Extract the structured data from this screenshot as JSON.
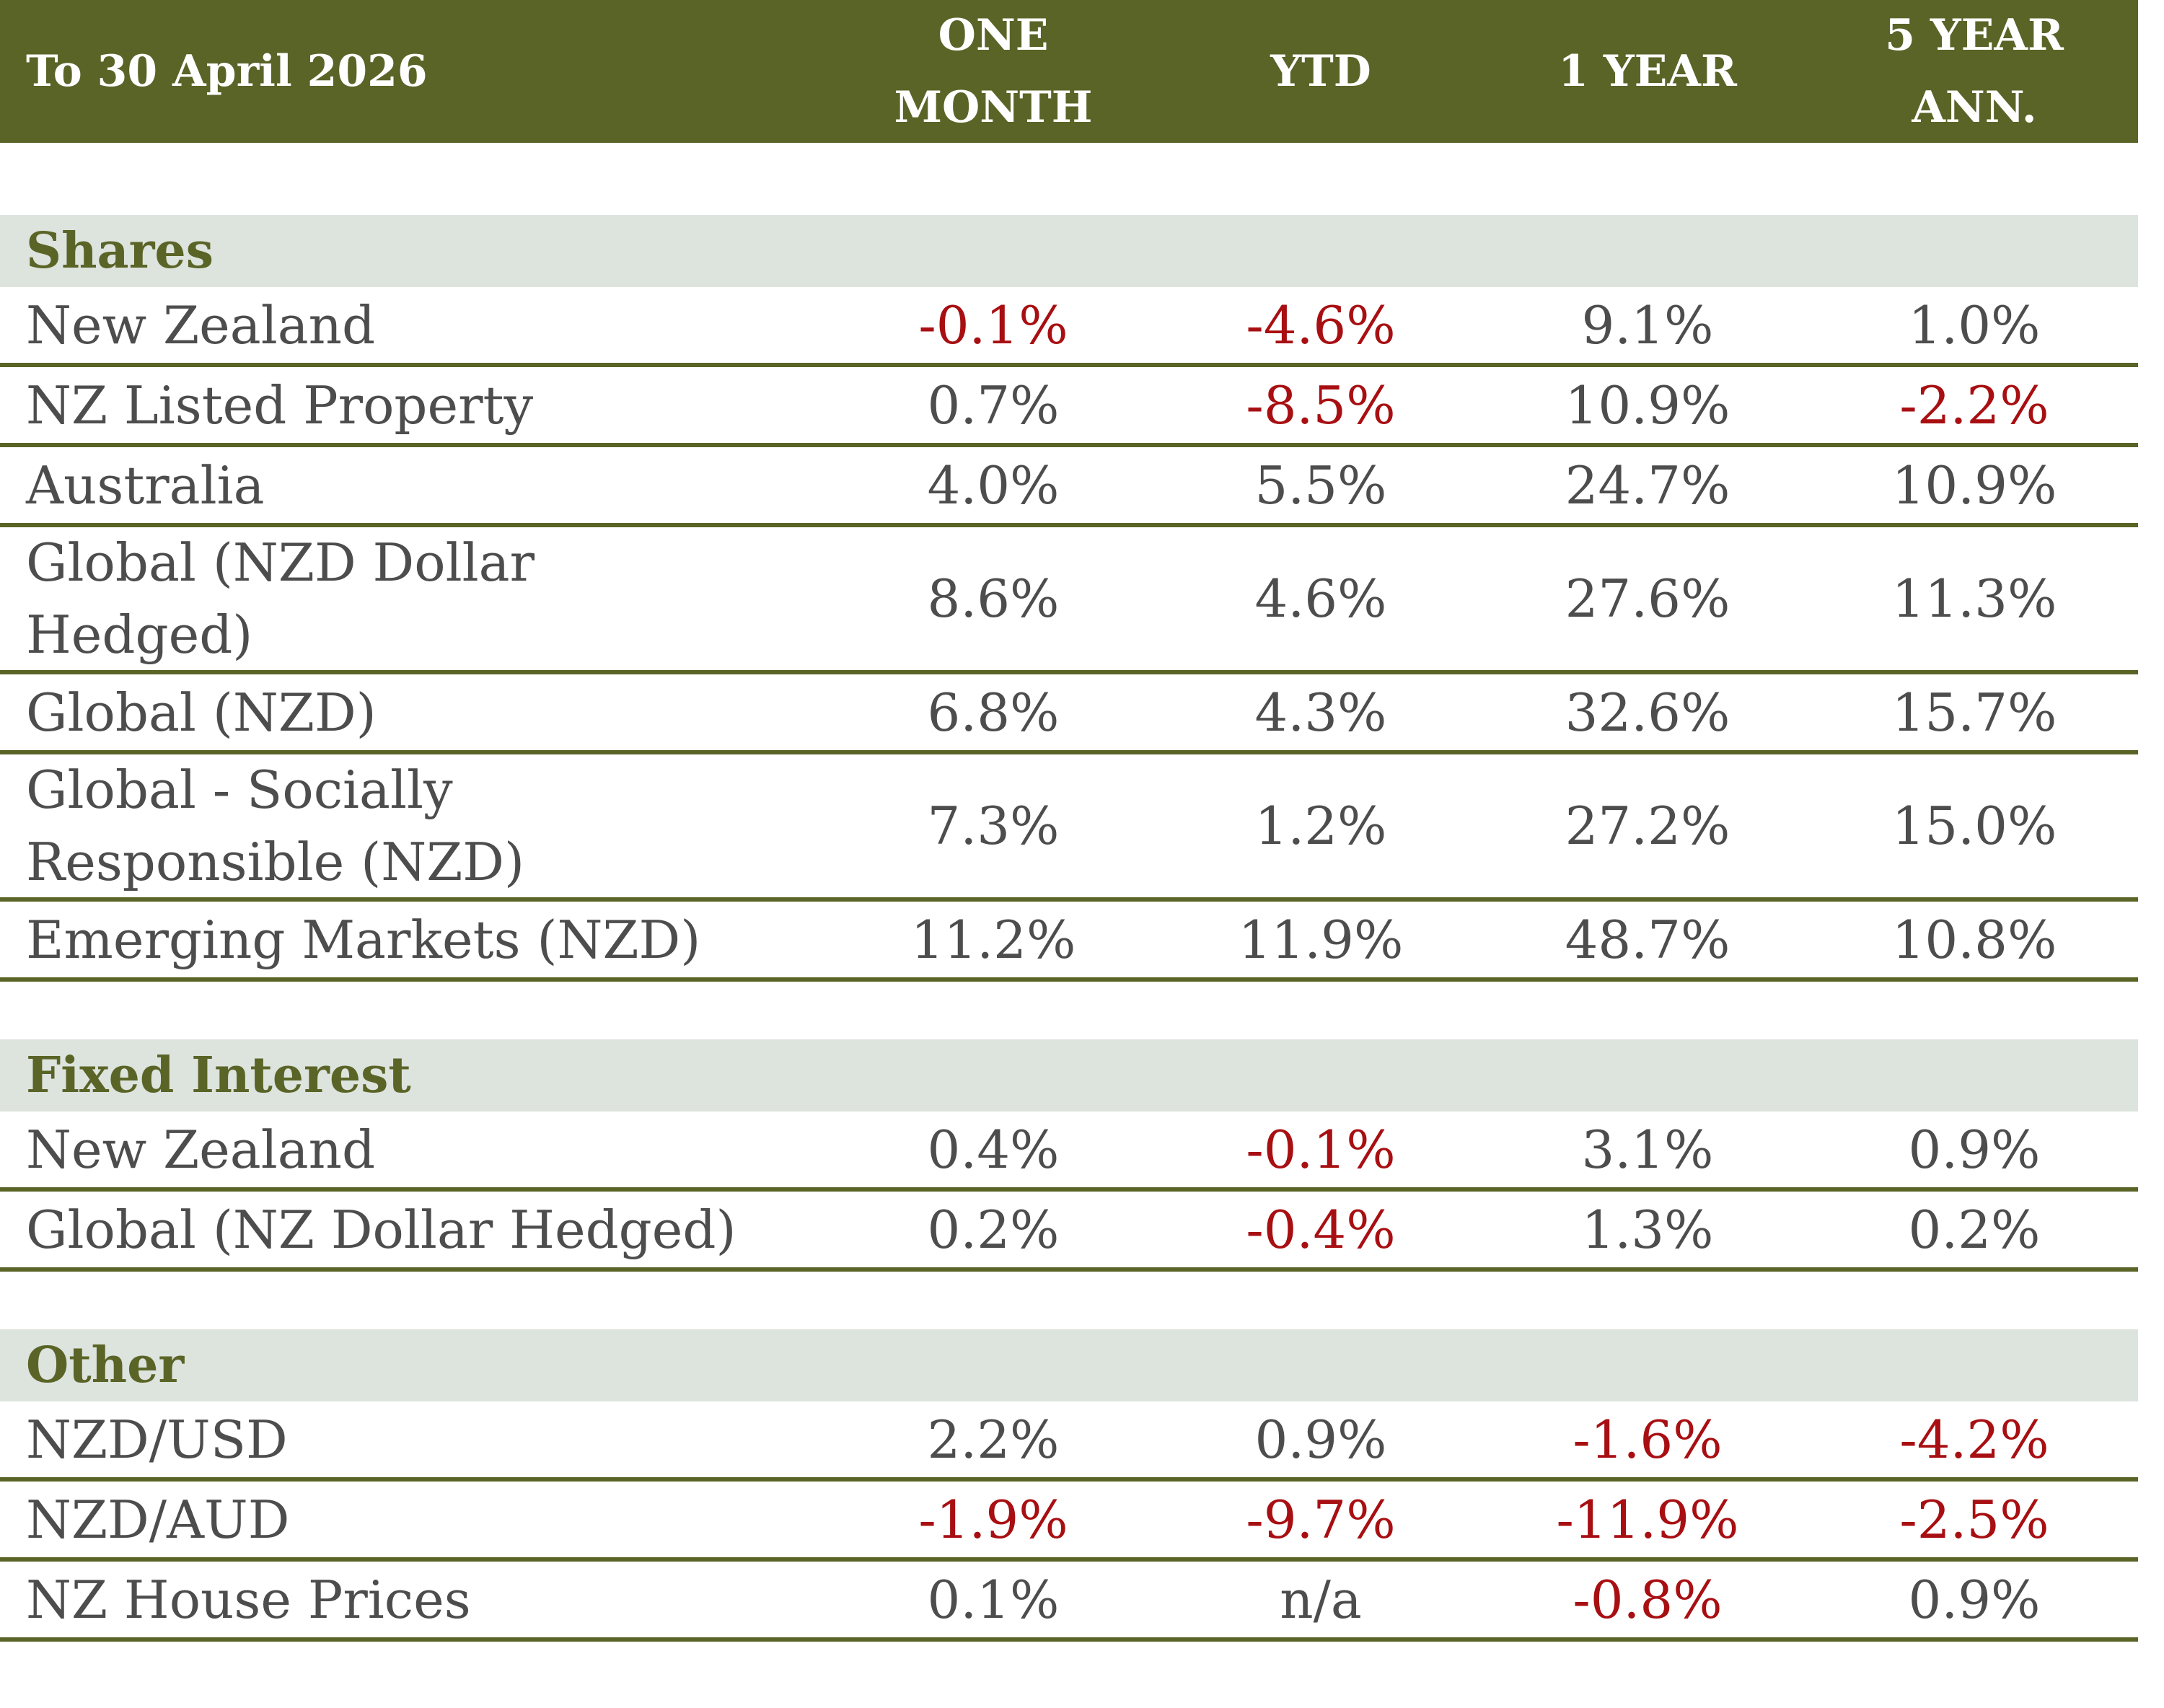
{
  "chart_data": {
    "type": "table",
    "columns": [
      "To 30 April 2026",
      "ONE MONTH",
      "YTD",
      "1 YEAR",
      "5 YEAR ANN."
    ],
    "sections": [
      {
        "title": "Shares",
        "rows": [
          {
            "label": "New Zealand",
            "values": [
              "-0.1%",
              "-4.6%",
              "9.1%",
              "1.0%"
            ]
          },
          {
            "label": "NZ Listed Property",
            "values": [
              "0.7%",
              "-8.5%",
              "10.9%",
              "-2.2%"
            ]
          },
          {
            "label": "Australia",
            "values": [
              "4.0%",
              "5.5%",
              "24.7%",
              "10.9%"
            ]
          },
          {
            "label": "Global (NZD Dollar Hedged)",
            "values": [
              "8.6%",
              "4.6%",
              "27.6%",
              "11.3%"
            ]
          },
          {
            "label": "Global (NZD)",
            "values": [
              "6.8%",
              "4.3%",
              "32.6%",
              "15.7%"
            ]
          },
          {
            "label": "Global - Socially Responsible (NZD)",
            "values": [
              "7.3%",
              "1.2%",
              "27.2%",
              "15.0%"
            ]
          },
          {
            "label": "Emerging Markets (NZD)",
            "values": [
              "11.2%",
              "11.9%",
              "48.7%",
              "10.8%"
            ]
          }
        ]
      },
      {
        "title": "Fixed Interest",
        "rows": [
          {
            "label": "New Zealand",
            "values": [
              "0.4%",
              "-0.1%",
              "3.1%",
              "0.9%"
            ]
          },
          {
            "label": "Global (NZ Dollar Hedged)",
            "values": [
              "0.2%",
              "-0.4%",
              "1.3%",
              "0.2%"
            ]
          }
        ]
      },
      {
        "title": "Other",
        "rows": [
          {
            "label": "NZD/USD",
            "values": [
              "2.2%",
              "0.9%",
              "-1.6%",
              "-4.2%"
            ]
          },
          {
            "label": "NZD/AUD",
            "values": [
              "-1.9%",
              "-9.7%",
              "-11.9%",
              "-2.5%"
            ]
          },
          {
            "label": "NZ House Prices",
            "values": [
              "0.1%",
              "n/a",
              "-0.8%",
              "0.9%"
            ]
          }
        ]
      }
    ]
  },
  "colors": {
    "header_bg": "#5a6427",
    "section_bg": "#dde3dd",
    "section_text": "#5a6427",
    "negative": "#a80f12",
    "text": "#4d4d4d",
    "rule": "#5a6427"
  }
}
